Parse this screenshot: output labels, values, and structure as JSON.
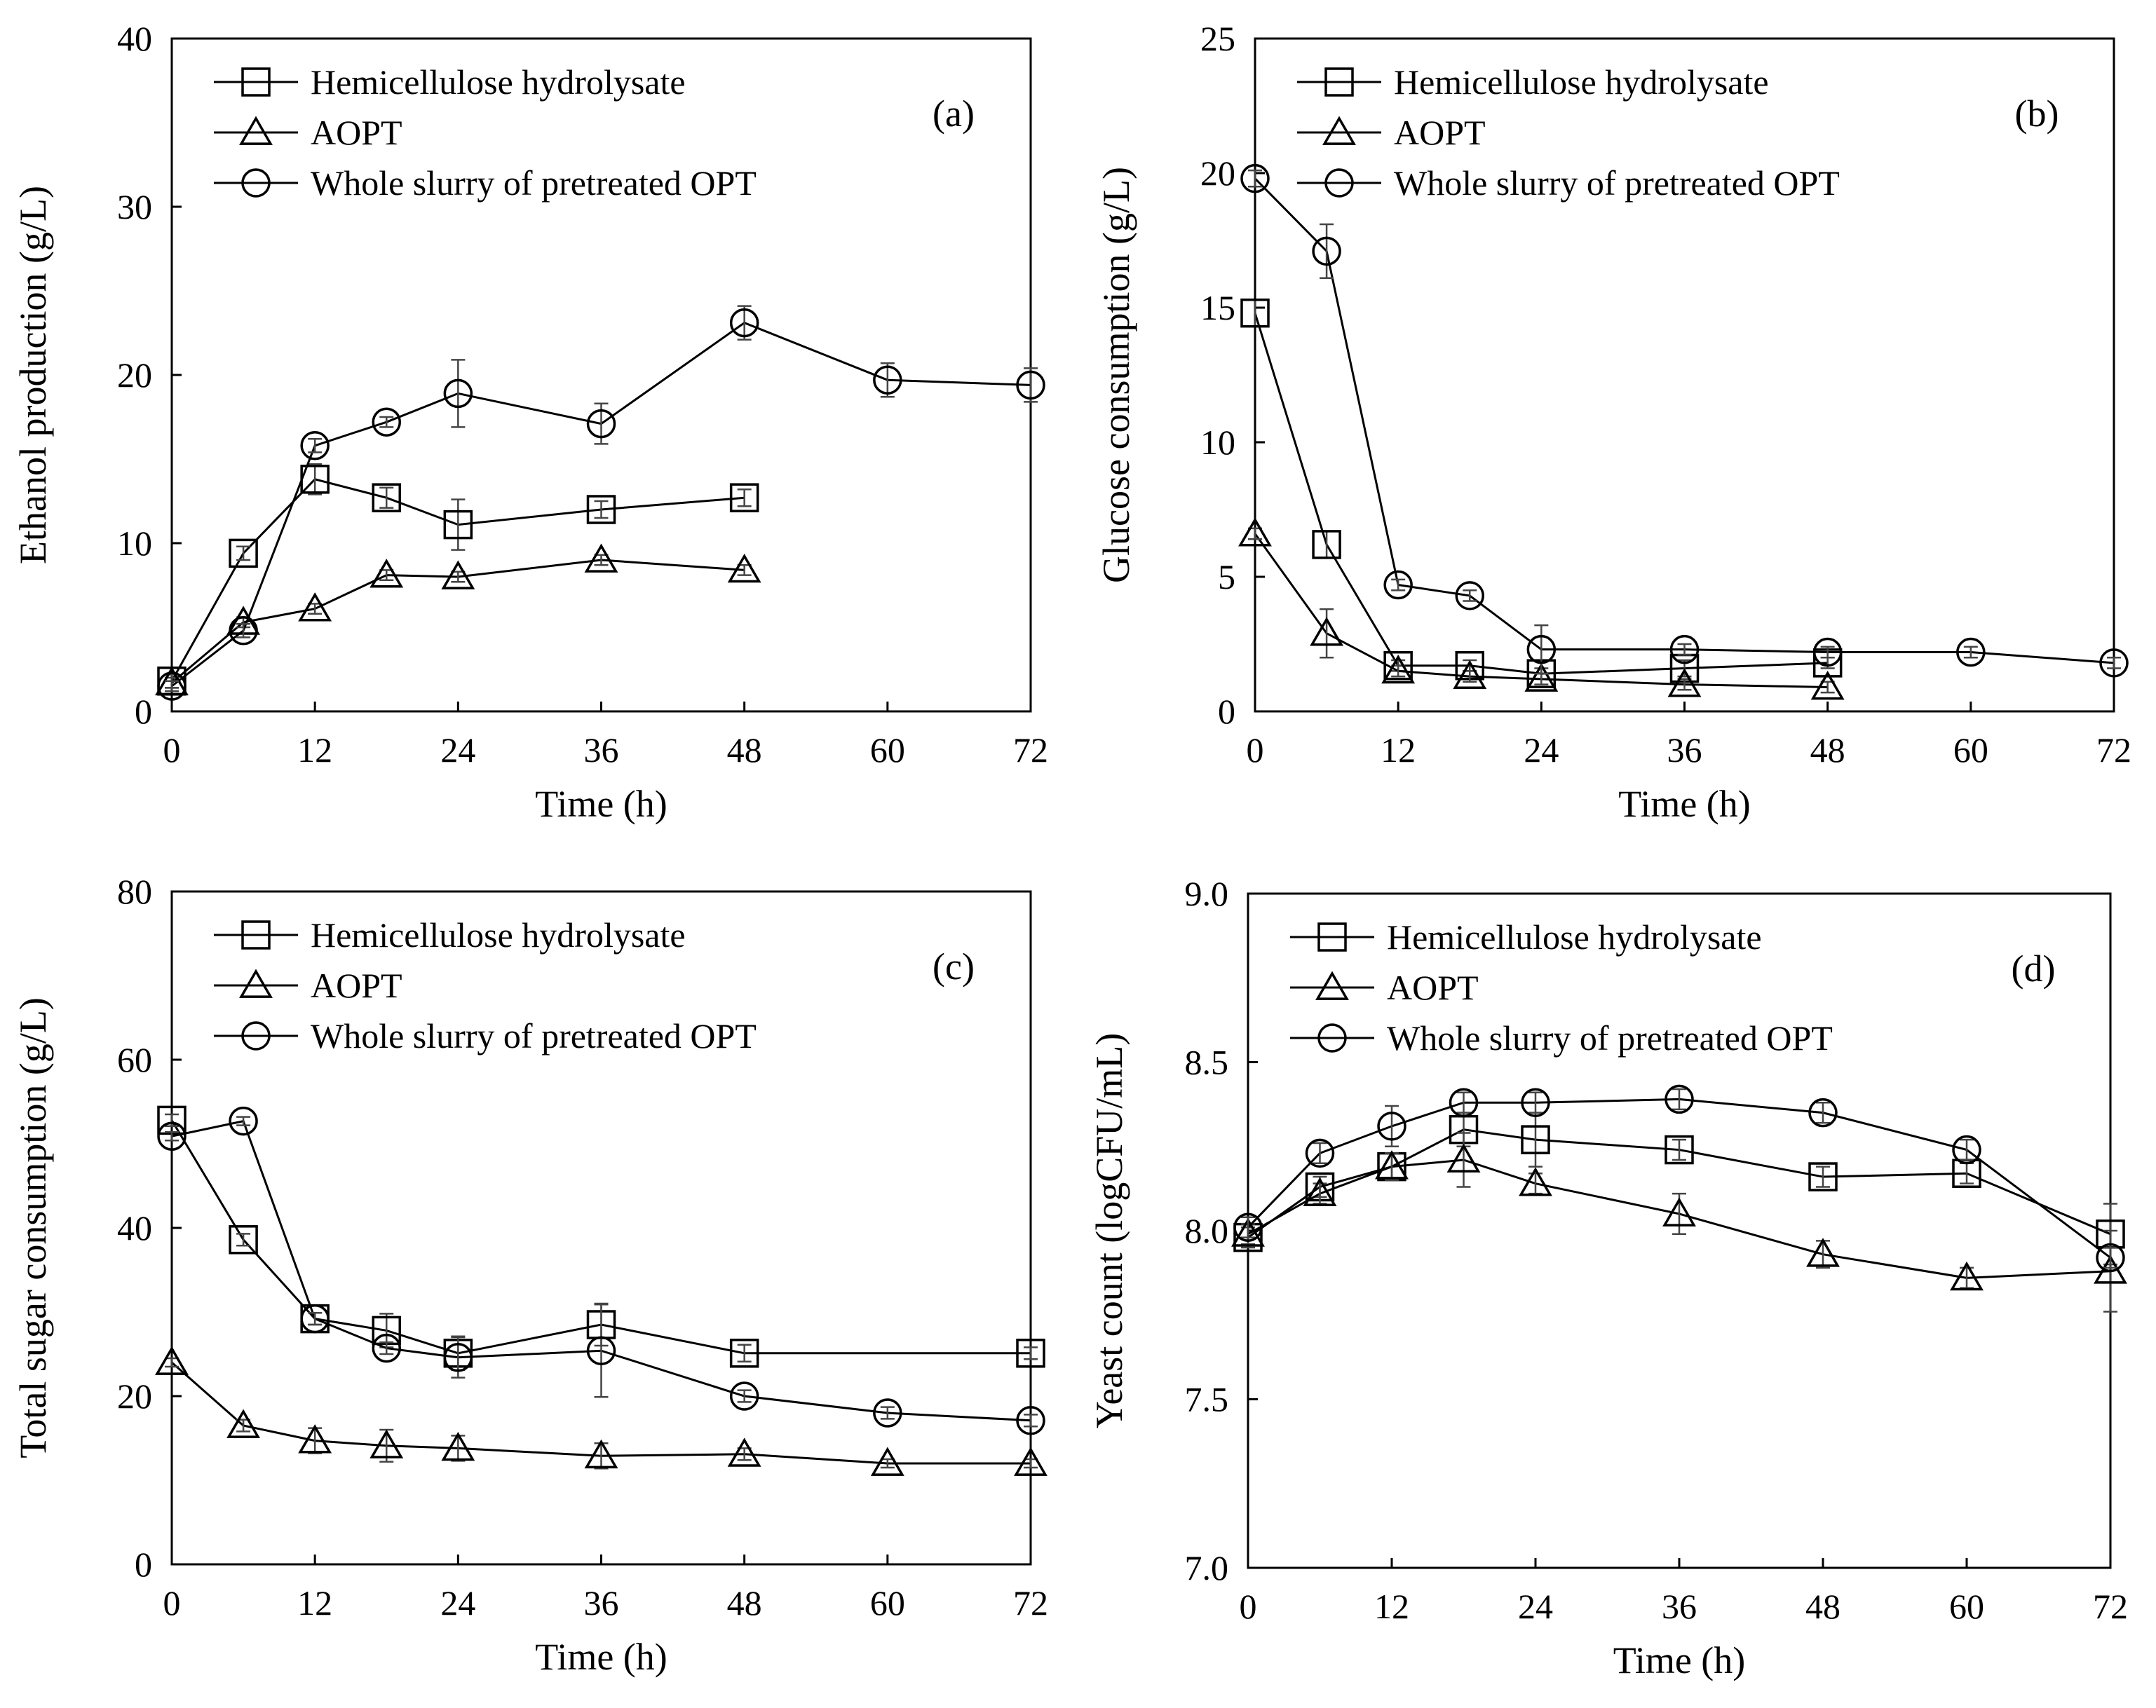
{
  "chart_data": [
    {
      "type": "line",
      "panel_label": "(a)",
      "xlabel": "Time (h)",
      "ylabel": "Ethanol production (g/L)",
      "xlim": [
        0,
        72
      ],
      "ylim": [
        0,
        40
      ],
      "xticks": [
        0,
        12,
        24,
        36,
        48,
        60,
        72
      ],
      "yticks": [
        0,
        10,
        20,
        30,
        40
      ],
      "legend_position": "top-left",
      "series": [
        {
          "name": "Hemicellulose hydrolysate",
          "marker": "square",
          "x": [
            0,
            6,
            12,
            18,
            24,
            36,
            48
          ],
          "values": [
            1.8,
            9.4,
            13.8,
            12.7,
            11.1,
            12.0,
            12.7
          ],
          "errors": [
            0.4,
            0.4,
            0.9,
            0.6,
            1.5,
            0.5,
            0.5
          ]
        },
        {
          "name": "AOPT",
          "marker": "triangle",
          "x": [
            0,
            6,
            12,
            18,
            24,
            36,
            48
          ],
          "values": [
            1.7,
            5.3,
            6.1,
            8.1,
            8.0,
            9.0,
            8.4
          ],
          "errors": [
            0.3,
            0.3,
            0.3,
            0.3,
            0.3,
            0.3,
            0.3
          ]
        },
        {
          "name": "Whole slurry of pretreated OPT",
          "marker": "circle",
          "x": [
            0,
            6,
            12,
            18,
            24,
            36,
            48,
            60,
            72
          ],
          "values": [
            1.5,
            4.8,
            15.8,
            17.2,
            18.9,
            17.1,
            23.1,
            19.7,
            19.4
          ],
          "errors": [
            0.3,
            0.4,
            0.4,
            0.3,
            2.0,
            1.2,
            1.0,
            1.0,
            1.0
          ]
        }
      ]
    },
    {
      "type": "line",
      "panel_label": "(b)",
      "xlabel": "Time (h)",
      "ylabel": "Glucose consumption (g/L)",
      "xlim": [
        0,
        72
      ],
      "ylim": [
        0,
        25
      ],
      "xticks": [
        0,
        12,
        24,
        36,
        48,
        60,
        72
      ],
      "yticks": [
        0,
        5,
        10,
        15,
        20,
        25
      ],
      "legend_position": "top-left",
      "series": [
        {
          "name": "Hemicellulose hydrolysate",
          "marker": "square",
          "x": [
            0,
            6,
            12,
            18,
            24,
            36,
            48
          ],
          "values": [
            14.8,
            6.2,
            1.7,
            1.7,
            1.4,
            1.6,
            1.8
          ],
          "errors": [
            0.5,
            0.5,
            0.2,
            0.2,
            0.2,
            0.3,
            0.2
          ]
        },
        {
          "name": "AOPT",
          "marker": "triangle",
          "x": [
            0,
            6,
            12,
            18,
            24,
            36,
            48
          ],
          "values": [
            6.6,
            2.9,
            1.5,
            1.3,
            1.2,
            1.0,
            0.9
          ],
          "errors": [
            0.2,
            0.9,
            0.2,
            0.2,
            0.2,
            0.2,
            0.2
          ]
        },
        {
          "name": "Whole slurry of pretreated OPT",
          "marker": "circle",
          "x": [
            0,
            6,
            12,
            18,
            24,
            36,
            48,
            60,
            72
          ],
          "values": [
            19.8,
            17.1,
            4.7,
            4.3,
            2.3,
            2.3,
            2.2,
            2.2,
            1.8
          ],
          "errors": [
            0.3,
            1.0,
            0.2,
            0.2,
            0.9,
            0.2,
            0.2,
            0.2,
            0.2
          ]
        }
      ]
    },
    {
      "type": "line",
      "panel_label": "(c)",
      "xlabel": "Time (h)",
      "ylabel": "Total sugar consumption (g/L)",
      "xlim": [
        0,
        72
      ],
      "ylim": [
        0,
        80
      ],
      "xticks": [
        0,
        12,
        24,
        36,
        48,
        60,
        72
      ],
      "yticks": [
        0,
        20,
        40,
        60,
        80
      ],
      "legend_position": "top-left",
      "series": [
        {
          "name": "Hemicellulose hydrolysate",
          "marker": "square",
          "x": [
            0,
            6,
            12,
            18,
            24,
            36,
            48,
            72
          ],
          "values": [
            52.8,
            38.6,
            29.2,
            27.8,
            25.1,
            28.5,
            25.1,
            25.1
          ],
          "errors": [
            0.7,
            0.7,
            0.7,
            2.0,
            2.0,
            2.5,
            1.0,
            0.7
          ]
        },
        {
          "name": "AOPT",
          "marker": "triangle",
          "x": [
            0,
            6,
            12,
            18,
            24,
            36,
            48,
            60,
            72
          ],
          "values": [
            24.0,
            16.5,
            14.7,
            14.1,
            13.8,
            12.9,
            13.1,
            12.0,
            12.0
          ],
          "errors": [
            0.5,
            0.7,
            1.5,
            1.9,
            1.5,
            1.5,
            0.7,
            0.5,
            0.5
          ]
        },
        {
          "name": "Whole slurry of pretreated OPT",
          "marker": "circle",
          "x": [
            0,
            6,
            12,
            18,
            24,
            36,
            48,
            60,
            72
          ],
          "values": [
            50.9,
            52.7,
            29.2,
            25.7,
            24.6,
            25.4,
            20.0,
            18.0,
            17.1
          ],
          "errors": [
            0.5,
            0.5,
            0.7,
            0.7,
            2.4,
            5.5,
            0.7,
            0.7,
            0.7
          ]
        }
      ]
    },
    {
      "type": "line",
      "panel_label": "(d)",
      "xlabel": "Time (h)",
      "ylabel": "Yeast count (logCFU/mL)",
      "xlim": [
        0,
        72
      ],
      "ylim": [
        7.0,
        9.0
      ],
      "xticks": [
        0,
        12,
        24,
        36,
        48,
        60,
        72
      ],
      "yticks": [
        7.0,
        7.5,
        8.0,
        8.5,
        9.0
      ],
      "ytick_labels": [
        "7.0",
        "7.5",
        "8.0",
        "8.5",
        "9.0"
      ],
      "legend_position": "top-left",
      "series": [
        {
          "name": "Hemicellulose hydrolysate",
          "marker": "square",
          "x": [
            0,
            6,
            12,
            18,
            24,
            36,
            48,
            60,
            72
          ],
          "values": [
            7.98,
            8.13,
            8.19,
            8.3,
            8.27,
            8.24,
            8.16,
            8.17,
            7.99
          ],
          "errors": [
            0.03,
            0.03,
            0.04,
            0.05,
            0.08,
            0.03,
            0.03,
            0.03,
            0.09
          ]
        },
        {
          "name": "AOPT",
          "marker": "triangle",
          "x": [
            0,
            6,
            12,
            18,
            24,
            36,
            48,
            60,
            72
          ],
          "values": [
            7.99,
            8.11,
            8.19,
            8.21,
            8.14,
            8.05,
            7.93,
            7.86,
            7.88
          ],
          "errors": [
            0.03,
            0.03,
            0.04,
            0.08,
            0.03,
            0.06,
            0.04,
            0.03,
            0.12
          ]
        },
        {
          "name": "Whole slurry of pretreated OPT",
          "marker": "circle",
          "x": [
            0,
            6,
            12,
            18,
            24,
            36,
            48,
            60,
            72
          ],
          "values": [
            8.01,
            8.23,
            8.31,
            8.38,
            8.38,
            8.39,
            8.35,
            8.24,
            7.92
          ],
          "errors": [
            0.03,
            0.03,
            0.06,
            0.03,
            0.03,
            0.03,
            0.03,
            0.03,
            0.03
          ]
        }
      ]
    }
  ]
}
